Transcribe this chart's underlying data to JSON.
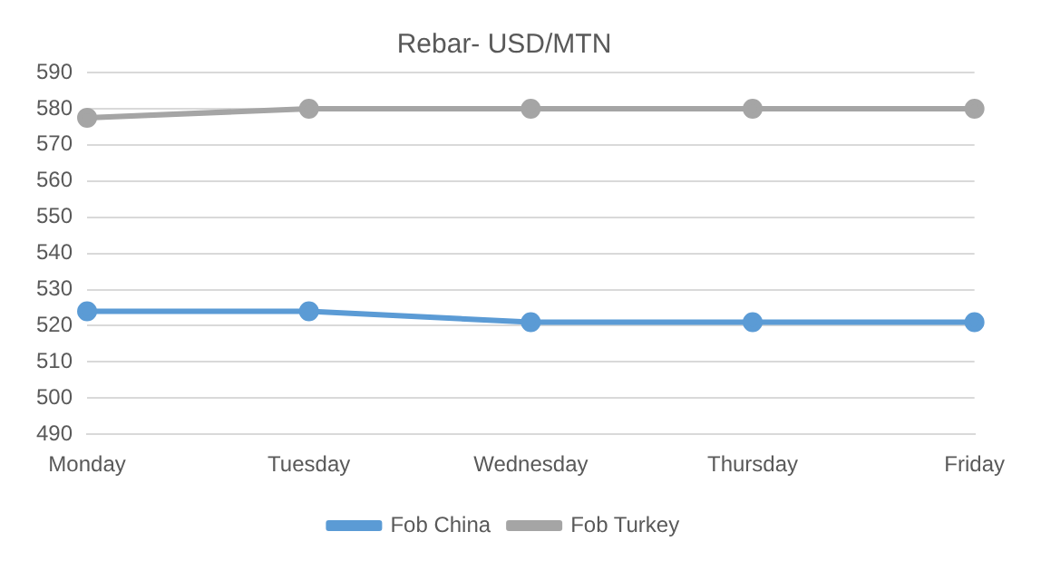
{
  "chart_data": {
    "type": "line",
    "title": "Rebar- USD/MTN",
    "categories": [
      "Monday",
      "Tuesday",
      "Wednesday",
      "Thursday",
      "Friday"
    ],
    "series": [
      {
        "name": "Fob China",
        "color": "#5b9bd5",
        "values": [
          524,
          524,
          521,
          521,
          521
        ]
      },
      {
        "name": "Fob Turkey",
        "color": "#a5a5a5",
        "values": [
          577.5,
          580,
          580,
          580,
          580
        ]
      }
    ],
    "ylim": [
      490,
      590
    ],
    "yticks": [
      490,
      500,
      510,
      520,
      530,
      540,
      550,
      560,
      570,
      580,
      590
    ],
    "grid": "y",
    "legend": "bottom",
    "marker": "circle",
    "line_style": "solid"
  }
}
